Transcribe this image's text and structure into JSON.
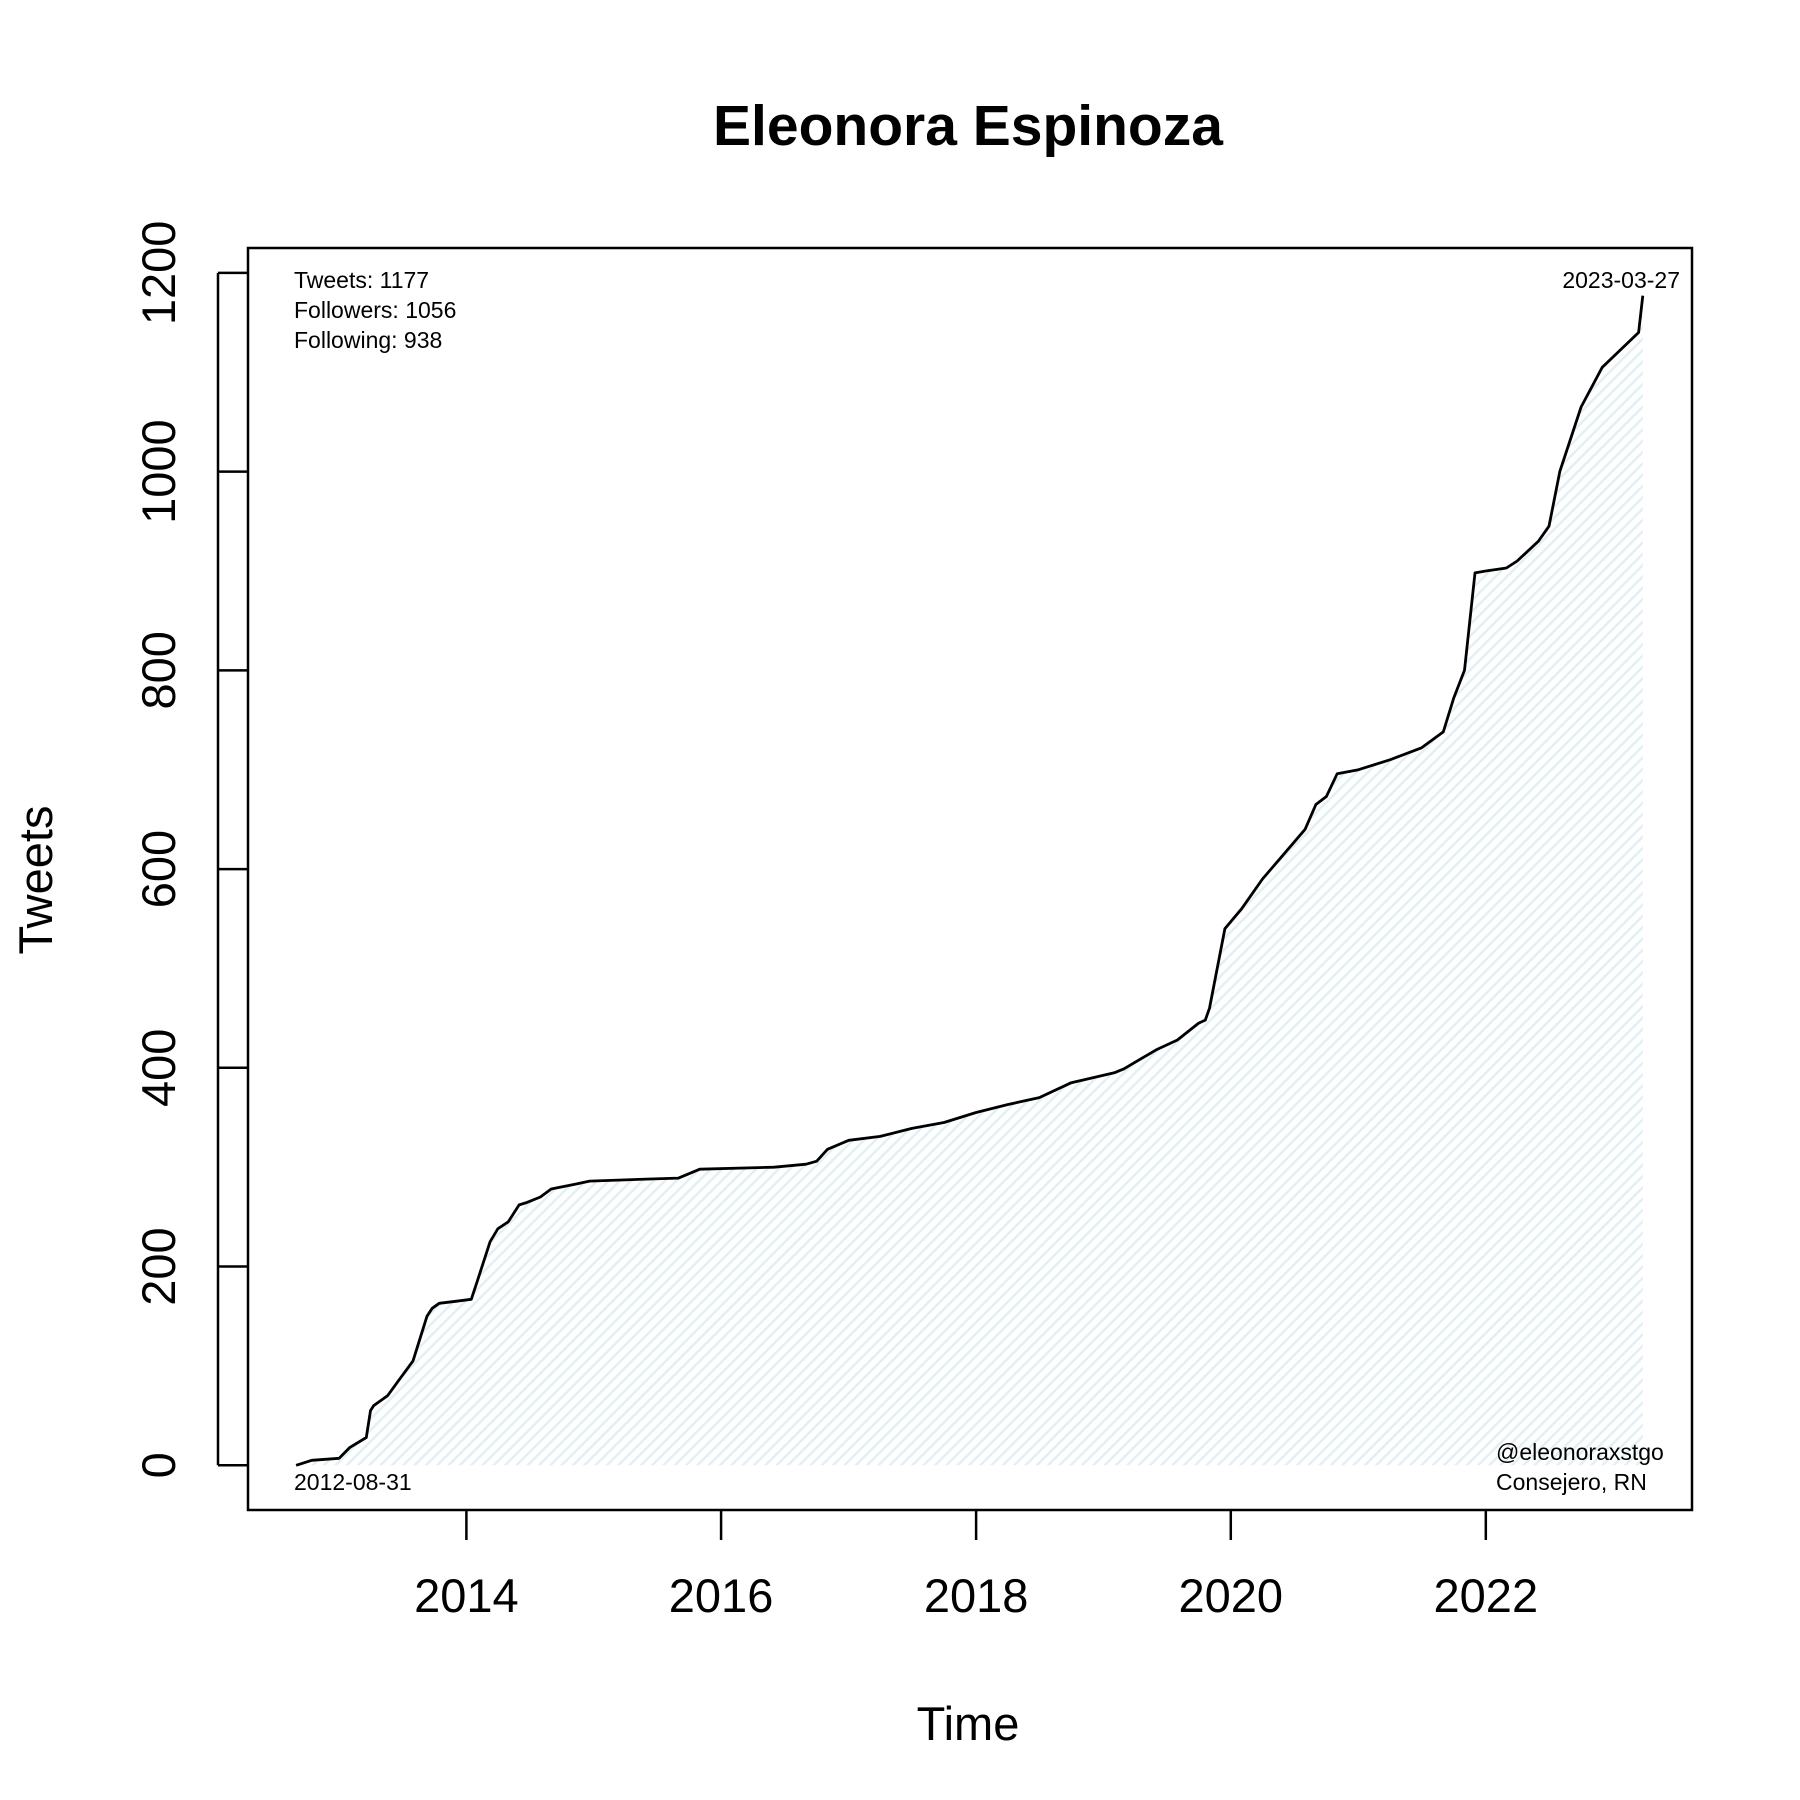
{
  "chart_data": {
    "type": "area",
    "title": "Eleonora Espinoza",
    "xlabel": "Time",
    "ylabel": "Tweets",
    "xlim": [
      "2012-04-15",
      "2023-08-15"
    ],
    "ylim": [
      -45,
      1225
    ],
    "x_ticks": [
      "2014",
      "2016",
      "2018",
      "2020",
      "2022"
    ],
    "y_ticks": [
      "0",
      "200",
      "400",
      "600",
      "800",
      "1000",
      "1200"
    ],
    "grid": false,
    "fill_color": "#e8f4f6",
    "line_color": "#000000",
    "annotations": {
      "stats": [
        "Tweets: 1177",
        "Followers: 1056",
        "Following: 938"
      ],
      "start_date": "2012-08-31",
      "end_date": "2023-03-27",
      "handle": "@eleonoraxstgo",
      "description": "Consejero, RN"
    },
    "series": [
      {
        "x": [
          "2012-08-31",
          "2012-10-15",
          "2013-01-01",
          "2013-02-01",
          "2013-03-20",
          "2013-04-01",
          "2013-04-10",
          "2013-05-20",
          "2013-06-20",
          "2013-08-01",
          "2013-09-10",
          "2013-09-25",
          "2013-10-15",
          "2013-12-01",
          "2014-01-15",
          "2014-02-01",
          "2014-03-10",
          "2014-04-01",
          "2014-05-01",
          "2014-06-01",
          "2014-06-20",
          "2014-08-01",
          "2014-09-01",
          "2014-11-10",
          "2014-12-20",
          "2015-06-01",
          "2015-09-01",
          "2015-11-01",
          "2016-06-01",
          "2016-09-01",
          "2016-10-01",
          "2016-11-01",
          "2017-01-01",
          "2017-04-01",
          "2017-07-01",
          "2017-10-01",
          "2018-01-01",
          "2018-04-01",
          "2018-07-01",
          "2018-10-01",
          "2019-02-01",
          "2019-03-01",
          "2019-06-01",
          "2019-08-01",
          "2019-10-01",
          "2019-10-20",
          "2019-11-01",
          "2019-12-15",
          "2020-02-01",
          "2020-04-01",
          "2020-06-01",
          "2020-08-01",
          "2020-09-01",
          "2020-10-01",
          "2020-11-01",
          "2021-01-01",
          "2021-04-01",
          "2021-07-01",
          "2021-09-01",
          "2021-10-01",
          "2021-11-01",
          "2021-12-01",
          "2022-01-01",
          "2022-03-01",
          "2022-04-01",
          "2022-06-01",
          "2022-07-01",
          "2022-08-01",
          "2022-10-01",
          "2022-12-01",
          "2023-03-15",
          "2023-03-27"
        ],
        "values": [
          0,
          5,
          7,
          18,
          28,
          55,
          60,
          70,
          85,
          105,
          150,
          158,
          163,
          165,
          167,
          185,
          225,
          238,
          245,
          262,
          264,
          270,
          278,
          283,
          286,
          288,
          289,
          298,
          300,
          303,
          306,
          318,
          327,
          331,
          339,
          345,
          355,
          363,
          370,
          385,
          395,
          399,
          418,
          428,
          445,
          448,
          460,
          540,
          560,
          590,
          615,
          640,
          665,
          673,
          696,
          700,
          710,
          722,
          738,
          772,
          800,
          898,
          900,
          903,
          910,
          930,
          945,
          1000,
          1065,
          1105,
          1140,
          1177
        ]
      }
    ]
  }
}
